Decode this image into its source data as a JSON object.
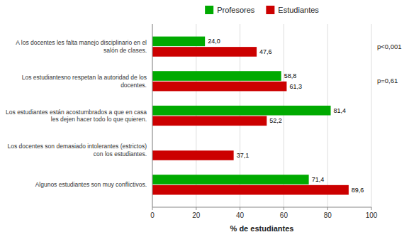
{
  "chart_data": {
    "type": "bar",
    "orientation": "horizontal",
    "categories": [
      "A los docentes les falta manejo disciplinario en el\nsalón de clases.",
      "Los estudiantesno respetan la autoridad de los\ndocentes.",
      "Los estudiantes están acostumbrados a que en casa\nles dejen hacer todo lo que quieren.",
      "Los docentes son demasiado intolerantes (estrictos)\ncon los estudiantes.",
      "Algunos estudiantes son muy conflictivos."
    ],
    "series": [
      {
        "name": "Profesores",
        "color": "#00aa00",
        "values": [
          24.0,
          58.8,
          81.4,
          0.0,
          71.4
        ],
        "value_labels": [
          "24,0",
          "58,8",
          "81,4",
          null,
          "71,4"
        ]
      },
      {
        "name": "Estudiantes",
        "color": "#cc0000",
        "values": [
          47.6,
          61.3,
          52.2,
          37.1,
          89.6
        ],
        "value_labels": [
          "47,6",
          "61,3",
          "52,2",
          "37,1",
          "89,6"
        ]
      }
    ],
    "xlim": [
      0,
      100
    ],
    "xticks": [
      0,
      20,
      40,
      60,
      80,
      100
    ],
    "xlabel": "% de estudiantes",
    "annotations": [
      {
        "text": "p<0,001",
        "category_index": 0
      },
      {
        "text": "p=0,61",
        "category_index": 1
      }
    ],
    "grid": true,
    "legend": "top",
    "data_labels": true
  }
}
